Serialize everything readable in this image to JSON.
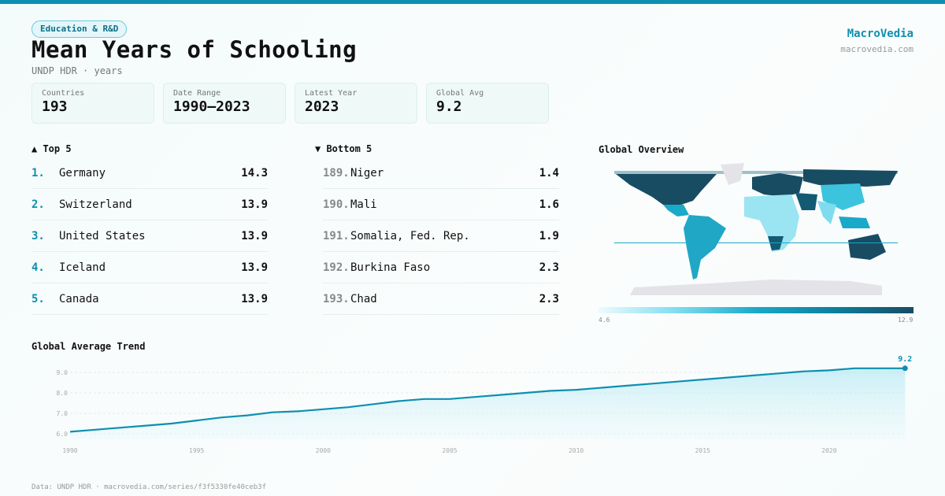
{
  "header": {
    "category": "Education & R&D",
    "title": "Mean Years of Schooling",
    "subtitle": "UNDP HDR · years",
    "brand": "MacroVedia",
    "brand_url": "macrovedia.com"
  },
  "stats": [
    {
      "label": "Countries",
      "value": "193"
    },
    {
      "label": "Date Range",
      "value": "1990–2023"
    },
    {
      "label": "Latest Year",
      "value": "2023"
    },
    {
      "label": "Global Avg",
      "value": "9.2"
    }
  ],
  "top5": {
    "title": "▲ Top 5",
    "items": [
      {
        "rank": "1.",
        "name": "Germany",
        "value": "14.3"
      },
      {
        "rank": "2.",
        "name": "Switzerland",
        "value": "13.9"
      },
      {
        "rank": "3.",
        "name": "United States",
        "value": "13.9"
      },
      {
        "rank": "4.",
        "name": "Iceland",
        "value": "13.9"
      },
      {
        "rank": "5.",
        "name": "Canada",
        "value": "13.9"
      }
    ]
  },
  "bottom5": {
    "title": "▼ Bottom 5",
    "items": [
      {
        "rank": "189.",
        "name": "Niger",
        "value": "1.4"
      },
      {
        "rank": "190.",
        "name": "Mali",
        "value": "1.6"
      },
      {
        "rank": "191.",
        "name": "Somalia, Fed. Rep.",
        "value": "1.9"
      },
      {
        "rank": "192.",
        "name": "Burkina Faso",
        "value": "2.3"
      },
      {
        "rank": "193.",
        "name": "Chad",
        "value": "2.3"
      }
    ]
  },
  "map": {
    "title": "Global Overview",
    "legend_min": "4.6",
    "legend_max": "12.9",
    "colors": {
      "low": "#eefbfd",
      "mid": "#1aa9c8",
      "high": "#184c63",
      "no_data": "#e4e4e8"
    }
  },
  "chart_data": {
    "type": "area",
    "title": "Global Average Trend",
    "accent": "#0e8fb0",
    "x": [
      1990,
      1991,
      1992,
      1993,
      1994,
      1995,
      1996,
      1997,
      1998,
      1999,
      2000,
      2001,
      2002,
      2003,
      2004,
      2005,
      2006,
      2007,
      2008,
      2009,
      2010,
      2011,
      2012,
      2013,
      2014,
      2015,
      2016,
      2017,
      2018,
      2019,
      2020,
      2021,
      2022,
      2023
    ],
    "y": [
      6.1,
      6.2,
      6.3,
      6.4,
      6.5,
      6.65,
      6.8,
      6.9,
      7.05,
      7.1,
      7.2,
      7.3,
      7.45,
      7.6,
      7.7,
      7.7,
      7.8,
      7.9,
      8.0,
      8.1,
      8.15,
      8.25,
      8.35,
      8.45,
      8.55,
      8.65,
      8.75,
      8.85,
      8.95,
      9.05,
      9.1,
      9.2,
      9.2,
      9.2
    ],
    "yticks": [
      "6.0",
      "7.0",
      "8.0",
      "9.0"
    ],
    "xticks": [
      "1990",
      "1995",
      "2000",
      "2005",
      "2010",
      "2015",
      "2020"
    ],
    "end_label": "9.2",
    "grid": true
  },
  "footer": "Data: UNDP HDR · macrovedia.com/series/f3f5330fe40ceb3f"
}
